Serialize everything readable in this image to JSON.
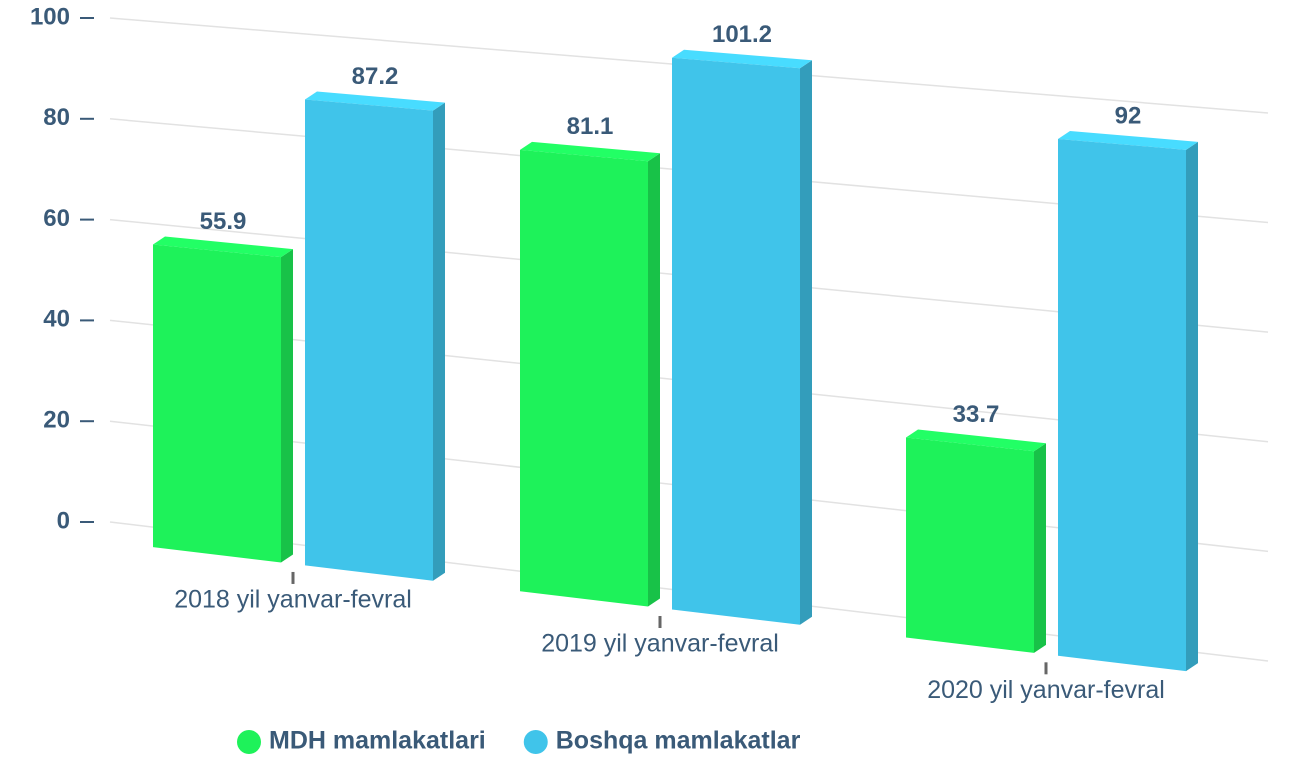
{
  "chart_data": {
    "type": "bar",
    "categories": [
      "2018 yil yanvar-fevral",
      "2019 yil yanvar-fevral",
      "2020 yil yanvar-fevral"
    ],
    "series": [
      {
        "name": "MDH mamlakatlari",
        "color": "#1ef25a",
        "values": [
          55.9,
          81.1,
          33.7
        ]
      },
      {
        "name": "Boshqa mamlakatlar",
        "color": "#40c4ea",
        "values": [
          87.2,
          101.2,
          92
        ]
      }
    ],
    "ylim": [
      0,
      100
    ],
    "yticks": [
      0,
      20,
      40,
      60,
      80,
      100
    ],
    "grid": true,
    "legend": "bottom"
  }
}
